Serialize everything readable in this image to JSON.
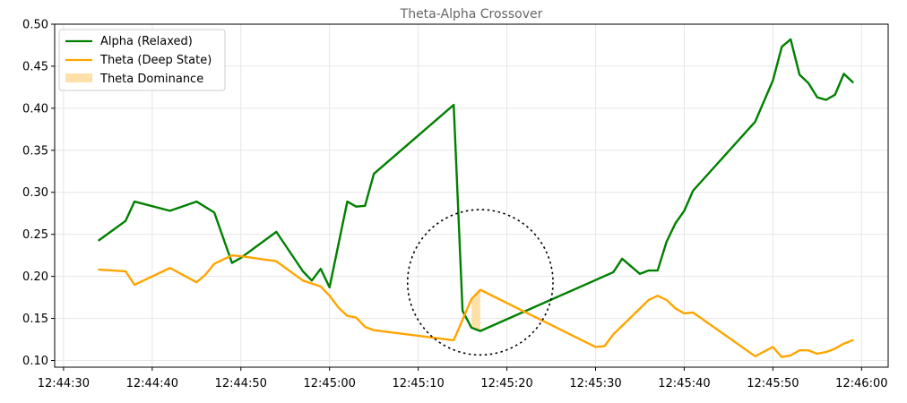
{
  "chart_data": {
    "type": "line",
    "title": "Theta-Alpha Crossover",
    "xlabel": "",
    "ylabel": "",
    "xlim": [
      "12:44:29",
      "12:46:03"
    ],
    "ylim": [
      0.092,
      0.5
    ],
    "x_ticks": [
      "12:44:30",
      "12:44:40",
      "12:44:50",
      "12:45:00",
      "12:45:10",
      "12:45:20",
      "12:45:30",
      "12:45:40",
      "12:45:50",
      "12:46:00"
    ],
    "y_ticks": [
      "0.10",
      "0.15",
      "0.20",
      "0.25",
      "0.30",
      "0.35",
      "0.40",
      "0.45",
      "0.50"
    ],
    "grid": true,
    "legend_placement": "top-left",
    "series": [
      {
        "name": "Alpha (Relaxed)",
        "color": "#008000",
        "points": [
          [
            "12:44:34",
            0.243
          ],
          [
            "12:44:37",
            0.266
          ],
          [
            "12:44:38",
            0.289
          ],
          [
            "12:44:42",
            0.278
          ],
          [
            "12:44:45",
            0.289
          ],
          [
            "12:44:47",
            0.276
          ],
          [
            "12:44:49",
            0.216
          ],
          [
            "12:44:50",
            0.222
          ],
          [
            "12:44:54",
            0.253
          ],
          [
            "12:44:57",
            0.206
          ],
          [
            "12:44:58",
            0.195
          ],
          [
            "12:44:59",
            0.209
          ],
          [
            "12:45:00",
            0.187
          ],
          [
            "12:45:02",
            0.289
          ],
          [
            "12:45:03",
            0.283
          ],
          [
            "12:45:04",
            0.284
          ],
          [
            "12:45:05",
            0.322
          ],
          [
            "12:45:14",
            0.404
          ],
          [
            "12:45:15",
            0.159
          ],
          [
            "12:45:16",
            0.139
          ],
          [
            "12:45:17",
            0.135
          ],
          [
            "12:45:32",
            0.205
          ],
          [
            "12:45:33",
            0.221
          ],
          [
            "12:45:35",
            0.203
          ],
          [
            "12:45:36",
            0.207
          ],
          [
            "12:45:37",
            0.207
          ],
          [
            "12:45:38",
            0.241
          ],
          [
            "12:45:39",
            0.263
          ],
          [
            "12:45:40",
            0.278
          ],
          [
            "12:45:41",
            0.302
          ],
          [
            "12:45:48",
            0.384
          ],
          [
            "12:45:50",
            0.433
          ],
          [
            "12:45:51",
            0.473
          ],
          [
            "12:45:52",
            0.482
          ],
          [
            "12:45:53",
            0.44
          ],
          [
            "12:45:54",
            0.43
          ],
          [
            "12:45:55",
            0.413
          ],
          [
            "12:45:56",
            0.41
          ],
          [
            "12:45:57",
            0.416
          ],
          [
            "12:45:58",
            0.441
          ],
          [
            "12:45:59",
            0.431
          ]
        ]
      },
      {
        "name": "Theta (Deep State)",
        "color": "#ffa500",
        "points": [
          [
            "12:44:34",
            0.208
          ],
          [
            "12:44:37",
            0.206
          ],
          [
            "12:44:38",
            0.19
          ],
          [
            "12:44:42",
            0.21
          ],
          [
            "12:44:45",
            0.193
          ],
          [
            "12:44:46",
            0.202
          ],
          [
            "12:44:47",
            0.215
          ],
          [
            "12:44:49",
            0.225
          ],
          [
            "12:44:50",
            0.224
          ],
          [
            "12:44:54",
            0.218
          ],
          [
            "12:44:57",
            0.195
          ],
          [
            "12:44:59",
            0.188
          ],
          [
            "12:45:00",
            0.177
          ],
          [
            "12:45:01",
            0.163
          ],
          [
            "12:45:02",
            0.153
          ],
          [
            "12:45:03",
            0.151
          ],
          [
            "12:45:04",
            0.14
          ],
          [
            "12:45:05",
            0.136
          ],
          [
            "12:45:14",
            0.124
          ],
          [
            "12:45:16",
            0.173
          ],
          [
            "12:45:17",
            0.184
          ],
          [
            "12:45:30",
            0.116
          ],
          [
            "12:45:31",
            0.117
          ],
          [
            "12:45:32",
            0.131
          ],
          [
            "12:45:36",
            0.172
          ],
          [
            "12:45:37",
            0.177
          ],
          [
            "12:45:38",
            0.172
          ],
          [
            "12:45:39",
            0.162
          ],
          [
            "12:45:40",
            0.156
          ],
          [
            "12:45:41",
            0.157
          ],
          [
            "12:45:48",
            0.105
          ],
          [
            "12:45:50",
            0.116
          ],
          [
            "12:45:51",
            0.104
          ],
          [
            "12:45:52",
            0.106
          ],
          [
            "12:45:53",
            0.112
          ],
          [
            "12:45:54",
            0.112
          ],
          [
            "12:45:55",
            0.108
          ],
          [
            "12:45:56",
            0.11
          ],
          [
            "12:45:57",
            0.114
          ],
          [
            "12:45:58",
            0.12
          ],
          [
            "12:45:59",
            0.124
          ]
        ]
      }
    ],
    "fill_between": {
      "name": "Theta Dominance",
      "color": "#ffe0a8",
      "points": [
        [
          "12:45:16",
          0.139,
          0.173
        ],
        [
          "12:45:17",
          0.135,
          0.184
        ]
      ]
    },
    "annotation": {
      "shape": "dotted-circle",
      "center": [
        "12:45:17",
        0.193
      ],
      "radius_seconds": 8.2
    }
  }
}
